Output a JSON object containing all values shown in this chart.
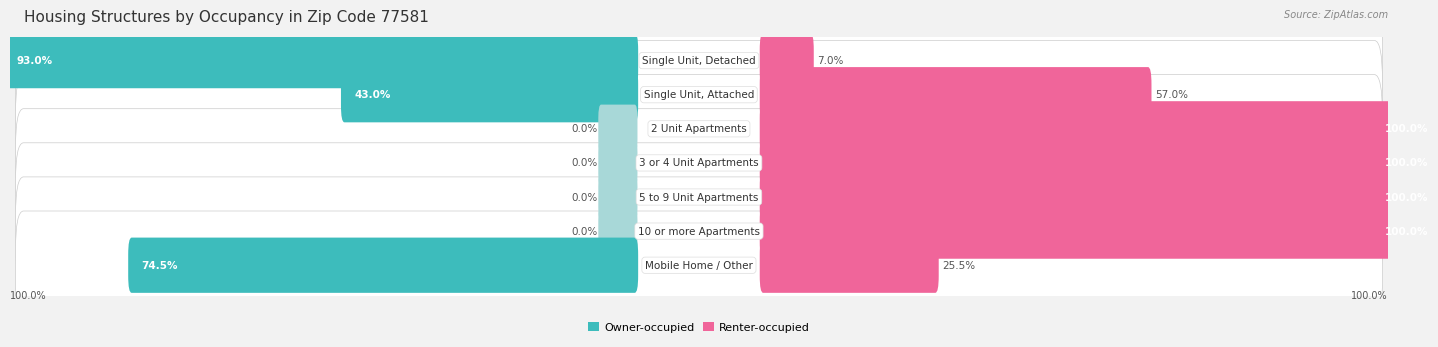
{
  "title": "Housing Structures by Occupancy in Zip Code 77581",
  "source": "Source: ZipAtlas.com",
  "categories": [
    "Single Unit, Detached",
    "Single Unit, Attached",
    "2 Unit Apartments",
    "3 or 4 Unit Apartments",
    "5 to 9 Unit Apartments",
    "10 or more Apartments",
    "Mobile Home / Other"
  ],
  "owner_pct": [
    93.0,
    43.0,
    0.0,
    0.0,
    0.0,
    0.0,
    74.5
  ],
  "renter_pct": [
    7.0,
    57.0,
    100.0,
    100.0,
    100.0,
    100.0,
    25.5
  ],
  "owner_color": "#3DBCBC",
  "renter_color": "#F0659A",
  "owner_stub_color": "#A8D8D8",
  "renter_stub_color": "#F5AABF",
  "row_bg_color": "#E8E8EC",
  "background_color": "#F2F2F2",
  "title_fontsize": 11,
  "label_fontsize": 7.5,
  "pct_fontsize": 7.5,
  "legend_fontsize": 8,
  "source_fontsize": 7
}
